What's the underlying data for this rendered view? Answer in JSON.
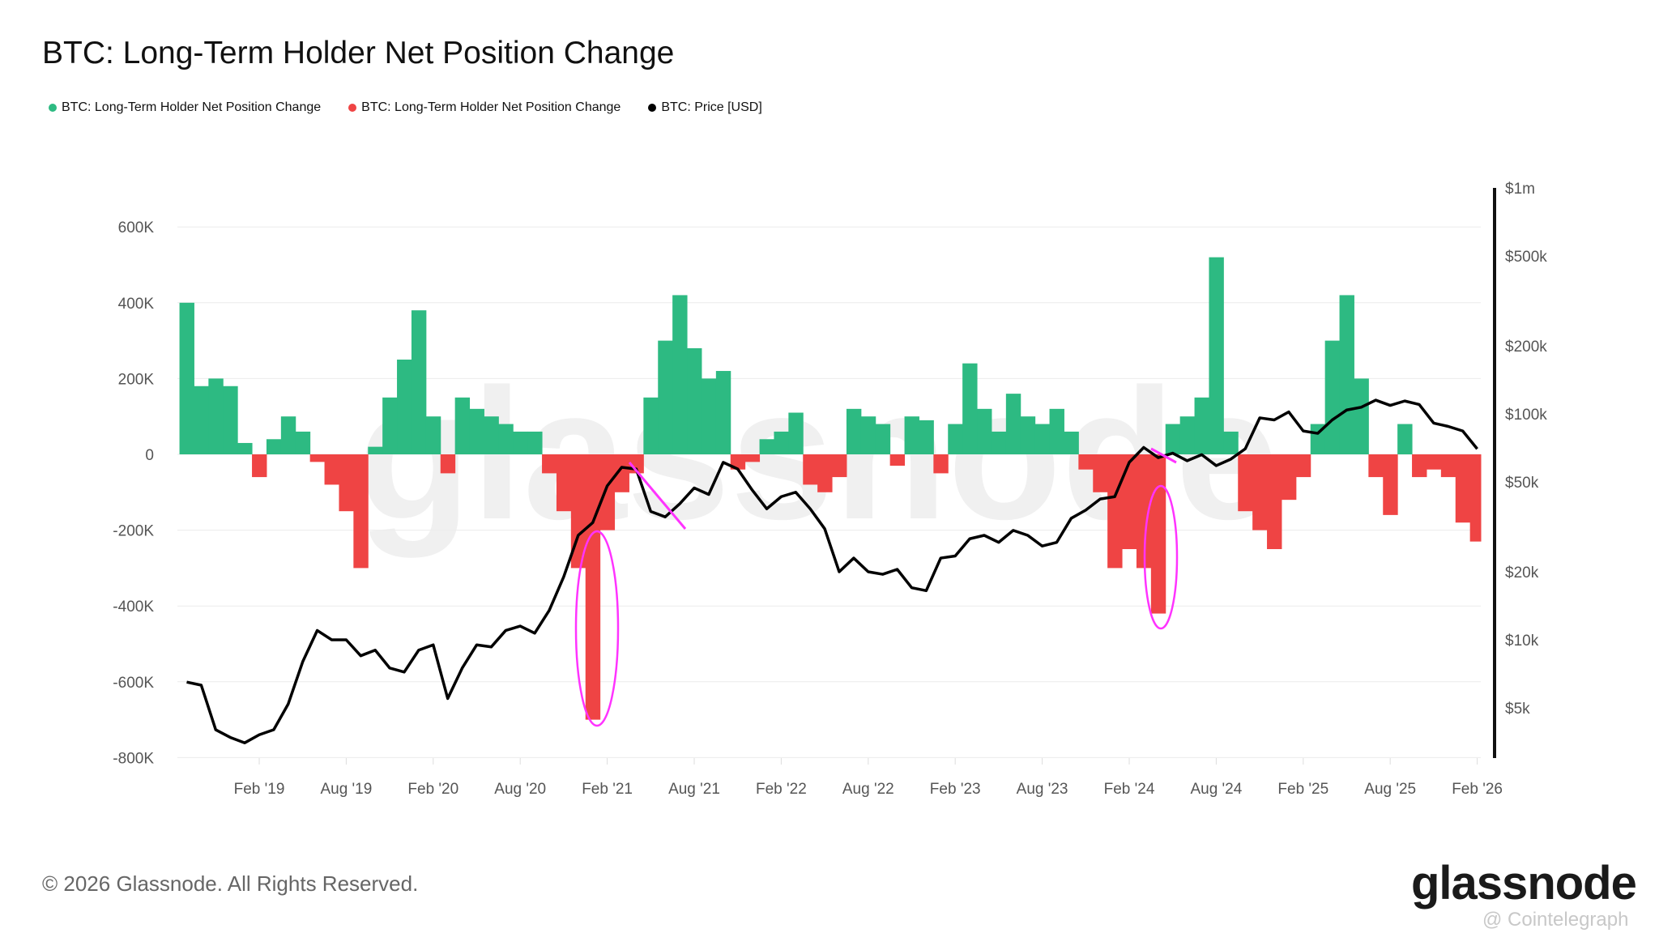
{
  "chart_data": {
    "type": "bar",
    "title": "BTC: Long-Term Holder Net Position Change",
    "legend": [
      {
        "label": "BTC: Long-Term Holder Net Position Change",
        "color": "#2dba82"
      },
      {
        "label": "BTC: Long-Term Holder Net Position Change",
        "color": "#ef4444"
      },
      {
        "label": "BTC: Price [USD]",
        "color": "#000000"
      }
    ],
    "legend_position": "top-left",
    "start_month": "2018-09",
    "interval": "monthly",
    "left_axis": {
      "ylim": [
        -800000,
        700000
      ],
      "ticks": [
        600000,
        400000,
        200000,
        0,
        -200000,
        -400000,
        -600000,
        -800000
      ],
      "tick_labels": [
        "600K",
        "400K",
        "200K",
        "0",
        "-200K",
        "-400K",
        "-600K",
        "-800K"
      ]
    },
    "right_axis": {
      "scale": "log",
      "ylim": [
        3000,
        1000000
      ],
      "ticks": [
        1000000,
        500000,
        200000,
        100000,
        50000,
        20000,
        10000,
        5000
      ],
      "tick_labels": [
        "$1m",
        "$500k",
        "$200k",
        "$100k",
        "$50k",
        "$20k",
        "$10k",
        "$5k"
      ]
    },
    "x_ticks": [
      "Feb '19",
      "Aug '19",
      "Feb '20",
      "Aug '20",
      "Feb '21",
      "Aug '21",
      "Feb '22",
      "Aug '22",
      "Feb '23",
      "Aug '23",
      "Feb '24",
      "Aug '24",
      "Feb '25",
      "Aug '25",
      "Feb '26"
    ],
    "x_tick_months": [
      5,
      11,
      17,
      23,
      29,
      35,
      41,
      47,
      53,
      59,
      65,
      71,
      77,
      83,
      89
    ],
    "grid": true,
    "net_position_change": [
      400000,
      180000,
      200000,
      180000,
      30000,
      -60000,
      40000,
      100000,
      60000,
      -20000,
      -80000,
      -150000,
      -300000,
      20000,
      150000,
      250000,
      380000,
      100000,
      -50000,
      150000,
      120000,
      100000,
      80000,
      60000,
      60000,
      -50000,
      -150000,
      -300000,
      -700000,
      -200000,
      -100000,
      -50000,
      150000,
      300000,
      420000,
      280000,
      200000,
      220000,
      -40000,
      -20000,
      40000,
      60000,
      110000,
      -80000,
      -100000,
      -60000,
      120000,
      100000,
      80000,
      -30000,
      100000,
      90000,
      -50000,
      80000,
      240000,
      120000,
      60000,
      160000,
      100000,
      80000,
      120000,
      60000,
      -40000,
      -100000,
      -300000,
      -250000,
      -300000,
      -420000,
      80000,
      100000,
      150000,
      520000,
      60000,
      -150000,
      -200000,
      -250000,
      -120000,
      -60000,
      80000,
      300000,
      420000,
      200000,
      -60000,
      -160000,
      80000,
      -60000,
      -40000,
      -60000,
      -180000,
      -230000
    ],
    "price_usd": [
      6500,
      6300,
      4000,
      3700,
      3500,
      3800,
      4000,
      5200,
      8000,
      11000,
      10000,
      10000,
      8500,
      9000,
      7500,
      7200,
      9000,
      9500,
      5500,
      7500,
      9500,
      9300,
      11000,
      11500,
      10700,
      13500,
      19000,
      29000,
      33000,
      48000,
      58000,
      57000,
      37000,
      35000,
      40000,
      47000,
      44000,
      61000,
      57000,
      46000,
      38000,
      43000,
      45000,
      38000,
      31000,
      20000,
      23000,
      20000,
      19500,
      20500,
      17000,
      16500,
      23000,
      23500,
      28000,
      29000,
      27000,
      30500,
      29000,
      26000,
      27000,
      34500,
      37500,
      42000,
      43000,
      61000,
      71000,
      64000,
      67000,
      62000,
      66000,
      59000,
      63000,
      70000,
      96000,
      94000,
      102000,
      84000,
      82000,
      94000,
      104000,
      107000,
      115000,
      109000,
      114000,
      110000,
      91000,
      88000,
      84000,
      70000
    ],
    "annotations": [
      "ellipse around Jan '21 outflow",
      "ellipse around Apr '24 outflow",
      "arrow Mar-Jul '21 price decline",
      "arrow Apr-May '24 price decline"
    ],
    "watermark": "glassnode"
  },
  "colors": {
    "positive": "#2dba82",
    "negative": "#ef4444",
    "price": "#000000",
    "annotation": "#ff33ff"
  },
  "footer": {
    "copyright": "© 2026 Glassnode. All Rights Reserved.",
    "logo": "glassnode",
    "credit": "@ Cointelegraph"
  }
}
